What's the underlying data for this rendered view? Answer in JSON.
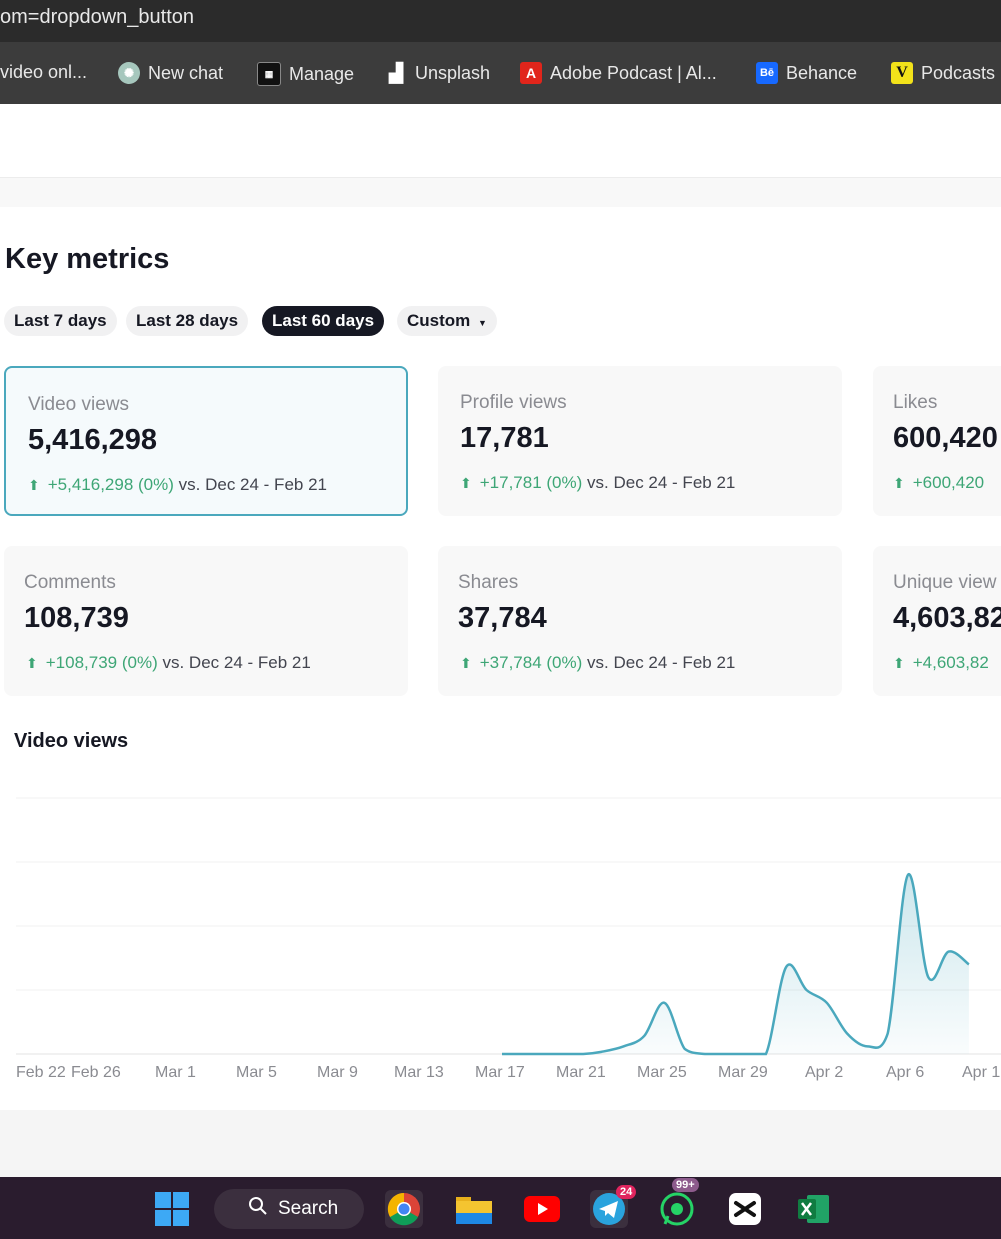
{
  "browser": {
    "url": "om=dropdown_button",
    "bookmarks": [
      {
        "label": "video onl...",
        "icon": "none"
      },
      {
        "label": "New chat",
        "icon": "chatgpt-icon"
      },
      {
        "label": "Manage",
        "icon": "manage-icon"
      },
      {
        "label": "Unsplash",
        "icon": "unsplash-icon"
      },
      {
        "label": "Adobe Podcast | Al...",
        "icon": "adobe-icon"
      },
      {
        "label": "Behance",
        "icon": "behance-icon"
      },
      {
        "label": "Podcasts",
        "icon": "podcasts-icon"
      }
    ]
  },
  "key_metrics": {
    "title": "Key metrics",
    "ranges": [
      "Last 7 days",
      "Last 28 days",
      "Last 60 days",
      "Custom"
    ],
    "active_range": "Last 60 days",
    "cards": [
      {
        "label": "Video views",
        "value": "5,416,298",
        "delta": "+5,416,298 (0%)",
        "compare": "vs.  Dec 24 - Feb 21",
        "active": true
      },
      {
        "label": "Profile views",
        "value": "17,781",
        "delta": "+17,781 (0%)",
        "compare": "vs.  Dec 24 - Feb 21"
      },
      {
        "label": "Likes",
        "value": "600,420",
        "delta": "+600,420",
        "compare": ""
      },
      {
        "label": "Comments",
        "value": "108,739",
        "delta": "+108,739 (0%)",
        "compare": "vs.  Dec 24 - Feb 21"
      },
      {
        "label": "Shares",
        "value": "37,784",
        "delta": "+37,784 (0%)",
        "compare": "vs.  Dec 24 - Feb 21"
      },
      {
        "label": "Unique view",
        "value": "4,603,82",
        "delta": "+4,603,82",
        "compare": ""
      }
    ]
  },
  "chart_data": {
    "type": "area",
    "title": "Video views",
    "x_ticks": [
      "Feb 22",
      "Feb 26",
      "Mar 1",
      "Mar 5",
      "Mar 9",
      "Mar 13",
      "Mar 17",
      "Mar 21",
      "Mar 25",
      "Mar 29",
      "Apr 2",
      "Apr 6",
      "Apr 1"
    ],
    "x": [
      "Mar 17",
      "Mar 19",
      "Mar 21",
      "Mar 22",
      "Mar 23",
      "Mar 24",
      "Mar 25",
      "Mar 26",
      "Mar 27",
      "Mar 28",
      "Mar 29",
      "Mar 30",
      "Mar 31",
      "Apr 1",
      "Apr 2",
      "Apr 3",
      "Apr 4",
      "Apr 5",
      "Apr 6",
      "Apr 7",
      "Apr 8",
      "Apr 9"
    ],
    "values": [
      0,
      0,
      0,
      1,
      3,
      7,
      20,
      2,
      0,
      0,
      0,
      0,
      34,
      25,
      20,
      8,
      3,
      8,
      70,
      30,
      40,
      35
    ],
    "y_range": [
      0,
      100
    ],
    "grid": true,
    "color": "#4aa8bd"
  },
  "taskbar": {
    "search_label": "Search",
    "apps": [
      "windows-icon",
      "chrome-icon",
      "file-explorer-icon",
      "youtube-icon",
      "telegram-icon",
      "whatsapp-icon",
      "capcut-icon",
      "excel-icon"
    ],
    "telegram_badge": "24",
    "whatsapp_badge": "99+"
  }
}
